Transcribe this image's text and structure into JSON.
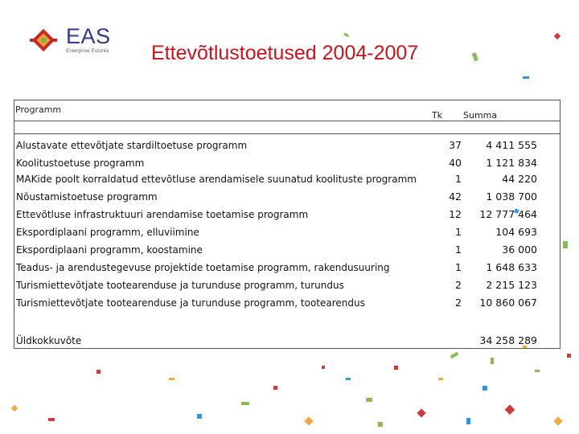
{
  "logo": {
    "name": "EAS",
    "subtitle": "Enterprise Estonia"
  },
  "title": "Ettevõtlustoetused 2004-2007",
  "table": {
    "headers": {
      "program": "Programm",
      "tk": "Tk",
      "sum": "Summa"
    },
    "rows": [
      {
        "name": "Alustavate ettevõtjate stardiltoetuse programm",
        "tk": "37",
        "sum": "4 411 555"
      },
      {
        "name": "Koolitustoetuse programm",
        "tk": "40",
        "sum": "1 121 834"
      },
      {
        "name": "MAKide poolt korraldatud ettevõtluse arendamisele suunatud koolituste programm",
        "tk": "1",
        "sum": "44 220"
      },
      {
        "name": "Nõustamistoetuse programm",
        "tk": "42",
        "sum": "1 038 700"
      },
      {
        "name": "Ettevõtluse infrastruktuuri arendamise toetamise programm",
        "tk": "12",
        "sum": "12 777 464"
      },
      {
        "name": "Ekspordiplaani programm, elluviimine",
        "tk": "1",
        "sum": "104 693"
      },
      {
        "name": "Ekspordiplaani programm, koostamine",
        "tk": "1",
        "sum": "36 000"
      },
      {
        "name": "Teadus- ja arendustegevuse projektide toetamise programm, rakendusuuring",
        "tk": "1",
        "sum": "1 648 633"
      },
      {
        "name": "Turismiettevõtjate tootearenduse ja turunduse programm, turundus",
        "tk": "2",
        "sum": "2 215 123"
      },
      {
        "name": "Turismiettevõtjate tootearenduse ja turunduse programm, tootearendus",
        "tk": "2",
        "sum": "10 860 067"
      }
    ],
    "total_label": "Üldkokkuvõte",
    "total_sum": "34 258 289"
  },
  "colors": {
    "title": "#c4161c",
    "logo_text": "#2e3a87",
    "accent_orange": "#f0a030",
    "accent_green": "#7cb342",
    "accent_red": "#c62828",
    "accent_blue": "#1e88e5"
  }
}
